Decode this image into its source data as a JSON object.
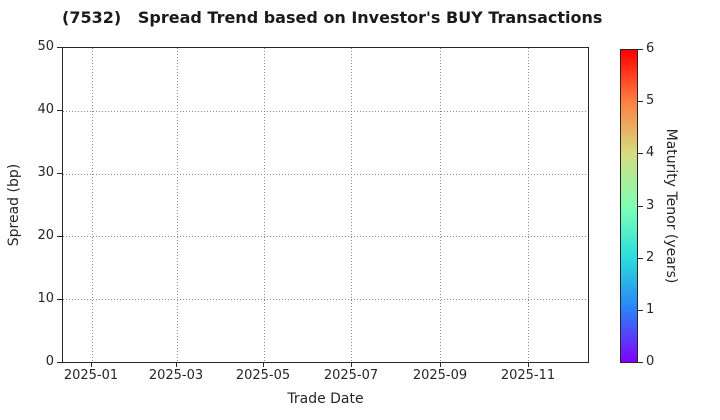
{
  "chart_data": {
    "type": "scatter",
    "title": "(7532)   Spread Trend based on Investor's BUY Transactions",
    "xlabel": "Trade Date",
    "ylabel": "Spread (bp)",
    "ylim": [
      0,
      50
    ],
    "y_ticks": [
      0,
      10,
      20,
      30,
      40,
      50
    ],
    "x_ticks": [
      {
        "label": "2025-01",
        "pos": 0.0551
      },
      {
        "label": "2025-03",
        "pos": 0.2167
      },
      {
        "label": "2025-05",
        "pos": 0.3821
      },
      {
        "label": "2025-07",
        "pos": 0.5494
      },
      {
        "label": "2025-09",
        "pos": 0.7186
      },
      {
        "label": "2025-11",
        "pos": 0.8859
      }
    ],
    "grid": true,
    "grid_style": "dotted",
    "points": [],
    "colorbar": {
      "label": "Maturity Tenor (years)",
      "range": [
        0,
        6
      ],
      "ticks": [
        0,
        1,
        2,
        3,
        4,
        5,
        6
      ],
      "colormap": "rainbow",
      "gradient_stops": [
        {
          "pos": 0.0,
          "color": "#8000ff"
        },
        {
          "pos": 0.1667,
          "color": "#2b80f6"
        },
        {
          "pos": 0.3333,
          "color": "#2bdddd"
        },
        {
          "pos": 0.5,
          "color": "#80ffb4"
        },
        {
          "pos": 0.6667,
          "color": "#d5dd80"
        },
        {
          "pos": 0.8333,
          "color": "#ff8042"
        },
        {
          "pos": 1.0,
          "color": "#ff0000"
        }
      ]
    },
    "colors": {
      "text": "#262626",
      "grid": "#8a8a8a",
      "axis": "#262626",
      "background": "#ffffff"
    }
  }
}
